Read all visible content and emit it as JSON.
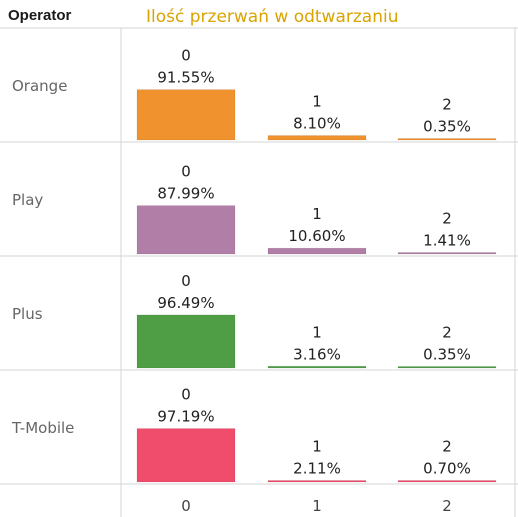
{
  "header": {
    "operator_label": "Operator",
    "title": "Ilość przerwań w odtwarzaniu"
  },
  "chart_data": {
    "type": "bar",
    "categories": [
      "0",
      "1",
      "2"
    ],
    "ylim": [
      0,
      100
    ],
    "grid": false,
    "rows": [
      {
        "name": "Orange",
        "color": "#f0922e",
        "values": [
          91.55,
          8.1,
          0.35
        ],
        "labels": [
          "91.55%",
          "8.10%",
          "0.35%"
        ]
      },
      {
        "name": "Play",
        "color": "#b07ea6",
        "values": [
          87.99,
          10.6,
          1.41
        ],
        "labels": [
          "87.99%",
          "10.60%",
          "1.41%"
        ]
      },
      {
        "name": "Plus",
        "color": "#4f9e45",
        "values": [
          96.49,
          3.16,
          0.35
        ],
        "labels": [
          "96.49%",
          "3.16%",
          "0.35%"
        ]
      },
      {
        "name": "T-Mobile",
        "color": "#f04c6c",
        "values": [
          97.19,
          2.11,
          0.7
        ],
        "labels": [
          "97.19%",
          "2.11%",
          "0.70%"
        ]
      }
    ]
  }
}
